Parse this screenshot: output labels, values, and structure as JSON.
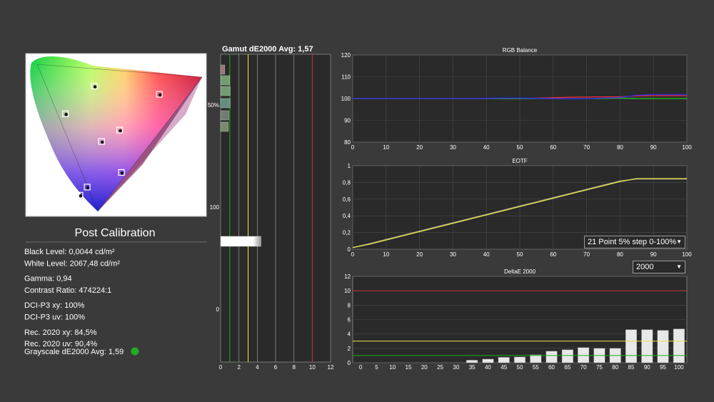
{
  "background": "#3a3a3a",
  "panel_title": "Post Calibration",
  "stats": [
    {
      "group": 1,
      "text": "Black Level: 0,0044 cd/m²"
    },
    {
      "group": 1,
      "text": "White Level: 2067,48 cd/m²"
    },
    {
      "group": 2,
      "text": "Gamma: 0,94"
    },
    {
      "group": 2,
      "text": "Contrast Ratio: 474224:1"
    },
    {
      "group": 3,
      "text": "DCI-P3 xy: 100%"
    },
    {
      "group": 3,
      "text": "DCI-P3 uv: 100%"
    },
    {
      "group": 4,
      "text": "Rec. 2020 xy: 84,5%"
    },
    {
      "group": 4,
      "text": "Rec. 2020 uv: 90,4%"
    }
  ],
  "grayscale": {
    "text": "Grayscale dE2000 Avg: 1,59",
    "status_color": "#22aa22"
  },
  "gamut_title": "Gamut dE2000 Avg:  1,57",
  "eotf_select": "21 Point 5% step 0-100%",
  "deltae_select": "2000",
  "chart_data": [
    {
      "type": "scatter",
      "name": "cie-diagram",
      "points": [
        {
          "x": 0.3,
          "y": 0.13
        },
        {
          "x": 0.34,
          "y": 0.18
        },
        {
          "x": 0.42,
          "y": 0.46
        },
        {
          "x": 0.53,
          "y": 0.27
        },
        {
          "x": 0.38,
          "y": 0.8
        },
        {
          "x": 0.74,
          "y": 0.75
        },
        {
          "x": 0.22,
          "y": 0.63
        },
        {
          "x": 0.52,
          "y": 0.53
        }
      ]
    },
    {
      "type": "bar",
      "name": "gamut-de",
      "title": "Gamut dE2000 Avg:  1,57",
      "xlim": [
        0,
        12
      ],
      "xticks": [
        0,
        2,
        4,
        6,
        8,
        10,
        12
      ],
      "ticks_left": [
        "50%",
        "100",
        "0"
      ],
      "reference_lines": [
        {
          "x": 1,
          "color": "#22aa22"
        },
        {
          "x": 3,
          "color": "#e8e84a"
        },
        {
          "x": 10,
          "color": "#cc3333"
        }
      ],
      "gridlines": [
        2,
        4,
        6,
        8
      ],
      "bars": [
        {
          "value": 0.45,
          "color": "#b08080"
        },
        {
          "value": 1.0,
          "color": "#80b080"
        },
        {
          "value": 1.05,
          "color": "#80b080"
        },
        {
          "value": 1.05,
          "color": "#70a090"
        },
        {
          "value": 0.9,
          "color": "#808a80"
        },
        {
          "value": 0.85,
          "color": "#8a9a80"
        },
        {
          "value": 4.4,
          "color": "#f0f0f0",
          "gradient": true
        }
      ]
    },
    {
      "type": "line",
      "name": "rgb-balance",
      "title": "RGB Balance",
      "xlim": [
        0,
        100
      ],
      "ylim": [
        80,
        120
      ],
      "xticks": [
        0,
        10,
        20,
        30,
        40,
        50,
        60,
        70,
        80,
        90,
        100
      ],
      "yticks": [
        80,
        90,
        100,
        110,
        120
      ],
      "x": [
        0,
        5,
        10,
        15,
        20,
        25,
        30,
        35,
        40,
        45,
        50,
        55,
        60,
        65,
        70,
        75,
        80,
        85,
        90,
        95,
        100
      ],
      "series": [
        {
          "color": "#ff2a2a",
          "values": [
            100,
            100,
            100,
            100,
            100,
            100,
            100,
            100,
            100,
            100,
            100,
            100.2,
            100.4,
            100.6,
            100.7,
            100.8,
            100.8,
            101.2,
            101.3,
            101.3,
            101.3
          ]
        },
        {
          "color": "#22cc22",
          "values": [
            100,
            100,
            100,
            100,
            100,
            100,
            100,
            100,
            100,
            100,
            100,
            100,
            100,
            99.9,
            100,
            100,
            100.2,
            100,
            100,
            100,
            100
          ]
        },
        {
          "color": "#2a2aff",
          "values": [
            100,
            100,
            100,
            100,
            100,
            100,
            100,
            100,
            100.1,
            100.2,
            100.2,
            100.1,
            100,
            99.9,
            100,
            100.2,
            100.5,
            101.5,
            101.8,
            101.8,
            101.8
          ]
        }
      ]
    },
    {
      "type": "line",
      "name": "eotf",
      "title": "EOTF",
      "xlim": [
        0,
        100
      ],
      "ylim": [
        0,
        1
      ],
      "xticks": [
        0,
        10,
        20,
        30,
        40,
        50,
        60,
        70,
        80,
        90,
        100
      ],
      "yticks": [
        "0",
        "0,2",
        "0,4",
        "0,6",
        "0,8",
        "1"
      ],
      "ytick_values": [
        0,
        0.2,
        0.4,
        0.6,
        0.8,
        1
      ],
      "x": [
        0,
        5,
        10,
        15,
        20,
        25,
        30,
        35,
        40,
        45,
        50,
        55,
        60,
        65,
        70,
        75,
        80,
        85,
        90,
        95,
        100
      ],
      "series": [
        {
          "color": "#9a9a9a",
          "values": [
            0.02,
            0.067,
            0.117,
            0.167,
            0.217,
            0.267,
            0.317,
            0.367,
            0.417,
            0.467,
            0.517,
            0.567,
            0.617,
            0.667,
            0.717,
            0.767,
            0.817,
            0.84,
            0.84,
            0.84,
            0.84
          ]
        },
        {
          "color": "#e8e84a",
          "values": [
            0.02,
            0.06,
            0.11,
            0.16,
            0.21,
            0.26,
            0.31,
            0.36,
            0.41,
            0.46,
            0.51,
            0.56,
            0.61,
            0.66,
            0.71,
            0.76,
            0.81,
            0.845,
            0.845,
            0.845,
            0.845
          ]
        }
      ]
    },
    {
      "type": "bar",
      "name": "deltae-2000",
      "title": "DeltaE 2000",
      "ylim": [
        0,
        12
      ],
      "yticks": [
        0,
        2,
        4,
        6,
        8,
        10,
        12
      ],
      "categories": [
        "0",
        "5",
        "10",
        "15",
        "20",
        "25",
        "30",
        "35",
        "40",
        "45",
        "50",
        "55",
        "60",
        "65",
        "70",
        "75",
        "80",
        "85",
        "90",
        "95",
        "100"
      ],
      "values": [
        0,
        0,
        0,
        0,
        0,
        0,
        0,
        0.35,
        0.5,
        0.75,
        0.8,
        1.1,
        1.6,
        1.8,
        2.1,
        2.0,
        2.0,
        4.6,
        4.6,
        4.5,
        4.7
      ],
      "reference_lines": [
        {
          "y": 1,
          "color": "#22aa22"
        },
        {
          "y": 3,
          "color": "#e8e84a"
        },
        {
          "y": 10,
          "color": "#cc3333"
        }
      ]
    }
  ]
}
